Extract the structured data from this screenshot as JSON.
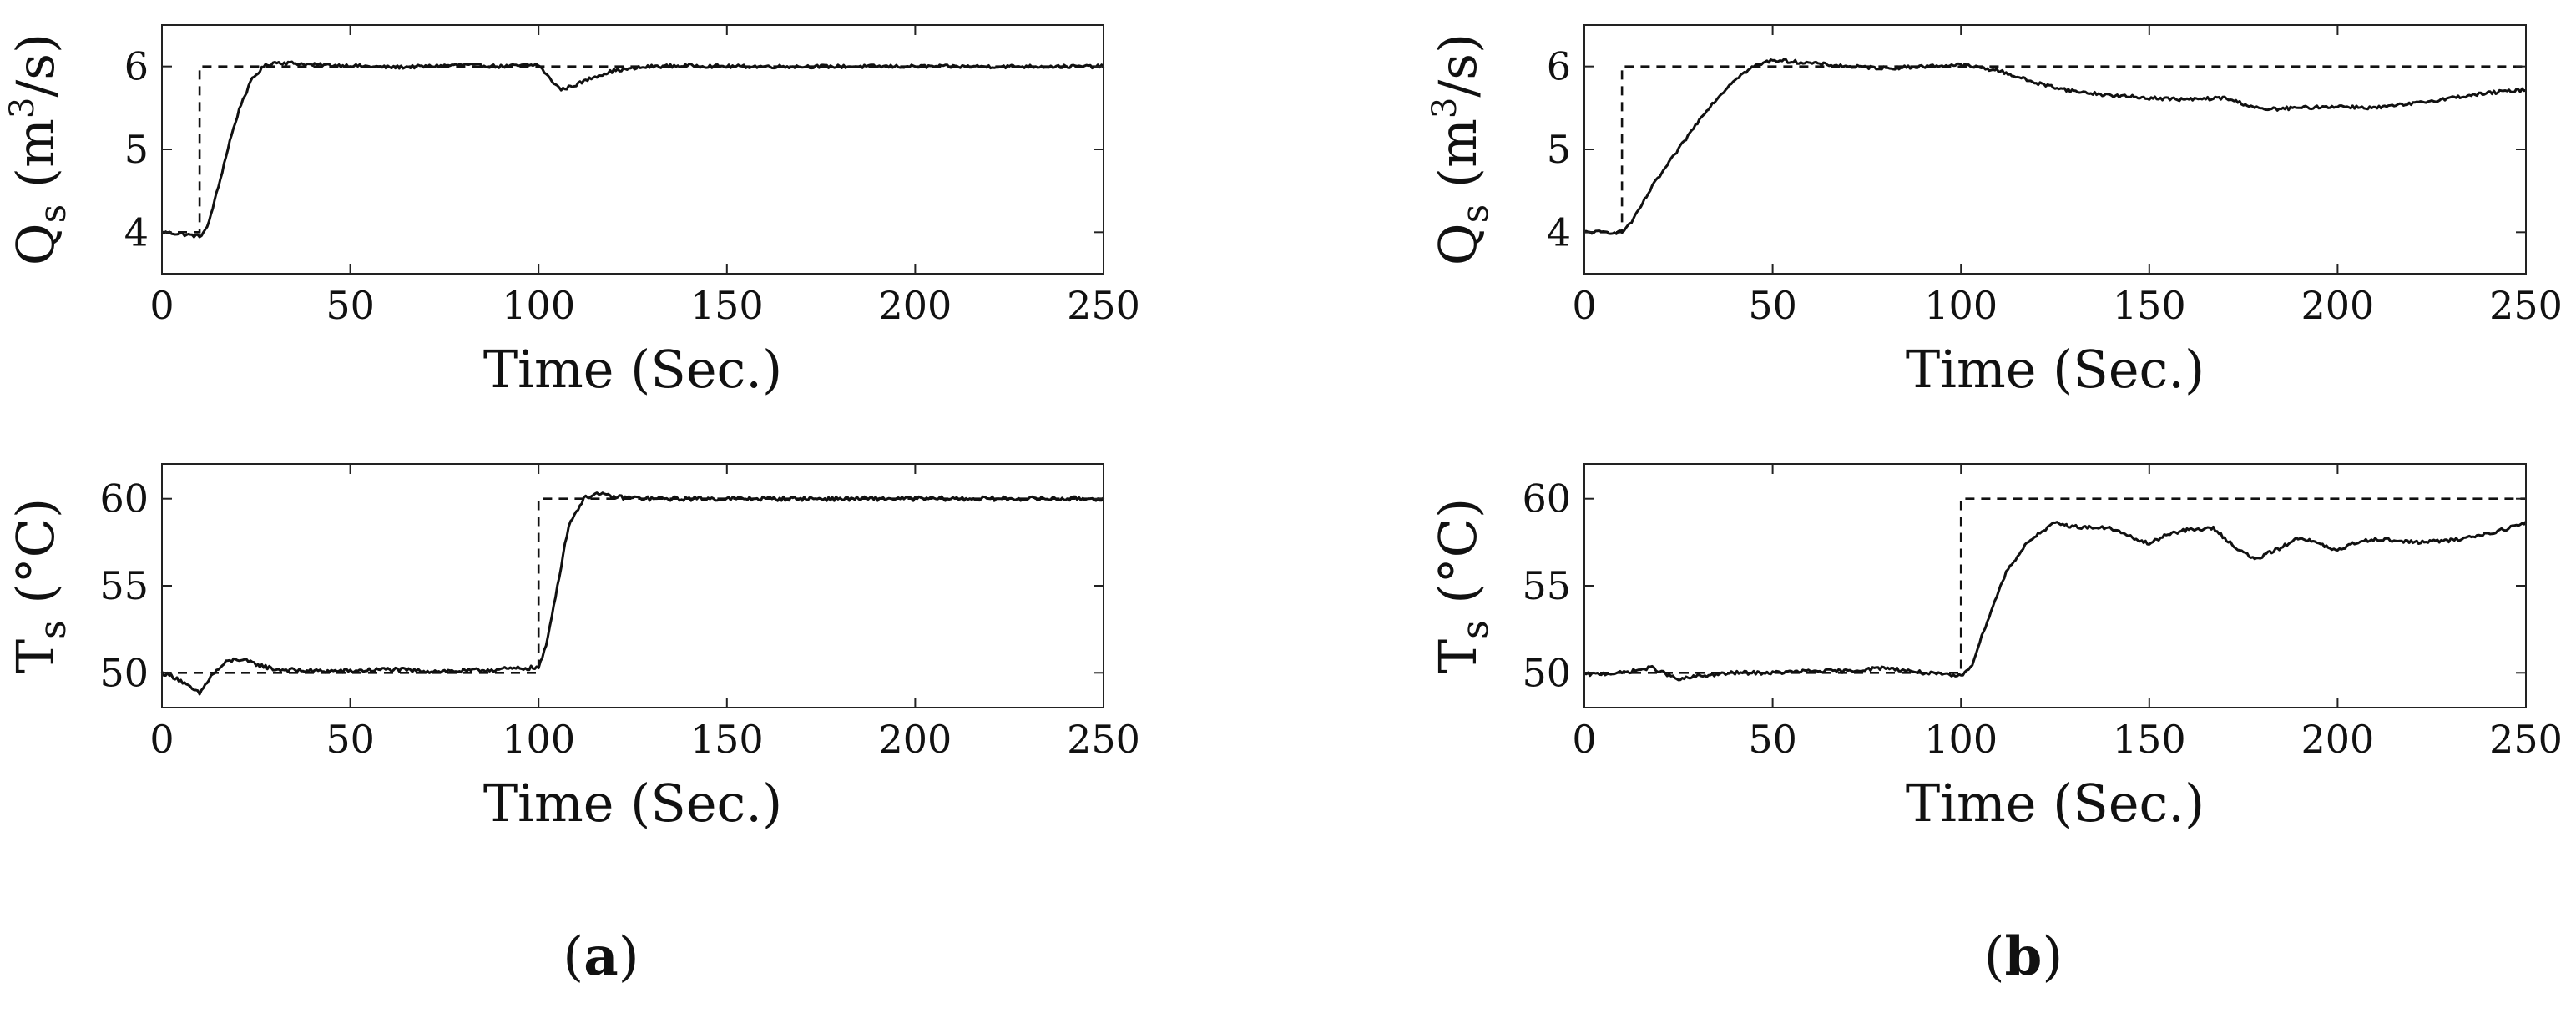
{
  "chart_data": [
    {
      "id": "a-top",
      "type": "line",
      "panel": "a",
      "ylabel_main": "Q",
      "ylabel_sub": "s",
      "ylabel_unit_pre": " (m",
      "ylabel_unit_sup": "3",
      "ylabel_unit_post": "/s)",
      "xlabel": "Time (Sec.)",
      "xlim": [
        0,
        250
      ],
      "ylim": [
        3.5,
        6.5
      ],
      "xticks": [
        0,
        50,
        100,
        150,
        200,
        250
      ],
      "yticks": [
        4,
        5,
        6
      ],
      "grid": false,
      "series": [
        {
          "name": "setpoint",
          "style": "dashed",
          "x": [
            0,
            10,
            10,
            250
          ],
          "y": [
            4,
            4,
            6,
            6
          ]
        },
        {
          "name": "measured",
          "style": "solid",
          "noise": 0.02,
          "x": [
            0,
            5,
            10,
            12,
            15,
            18,
            21,
            24,
            27,
            30,
            35,
            40,
            50,
            60,
            70,
            80,
            90,
            100,
            103,
            106,
            110,
            115,
            120,
            130,
            140,
            150,
            175,
            200,
            225,
            250
          ],
          "y": [
            4.0,
            3.98,
            3.95,
            4.05,
            4.55,
            5.1,
            5.55,
            5.85,
            6.0,
            6.05,
            6.04,
            6.02,
            6.01,
            5.99,
            6.0,
            6.02,
            6.0,
            6.02,
            5.85,
            5.72,
            5.78,
            5.88,
            5.95,
            6.0,
            6.01,
            6.0,
            6.0,
            6.0,
            6.0,
            6.0
          ]
        }
      ]
    },
    {
      "id": "a-bottom",
      "type": "line",
      "panel": "a",
      "ylabel_main": "T",
      "ylabel_sub": "s",
      "ylabel_unit_pre": " (°C)",
      "ylabel_unit_sup": "",
      "ylabel_unit_post": "",
      "xlabel": "Time (Sec.)",
      "xlim": [
        0,
        250
      ],
      "ylim": [
        48,
        62
      ],
      "xticks": [
        0,
        50,
        100,
        150,
        200,
        250
      ],
      "yticks": [
        50,
        55,
        60
      ],
      "grid": false,
      "series": [
        {
          "name": "setpoint",
          "style": "dashed",
          "x": [
            0,
            100,
            100,
            250
          ],
          "y": [
            50,
            50,
            60,
            60
          ]
        },
        {
          "name": "measured",
          "style": "solid",
          "noise": 0.12,
          "x": [
            0,
            4,
            7,
            10,
            13,
            17,
            20,
            25,
            30,
            40,
            50,
            60,
            70,
            80,
            90,
            100,
            102,
            105,
            108,
            112,
            115,
            120,
            130,
            150,
            175,
            200,
            225,
            250
          ],
          "y": [
            50.0,
            49.7,
            49.2,
            48.8,
            49.8,
            50.6,
            50.8,
            50.5,
            50.2,
            50.1,
            50.1,
            50.2,
            50.1,
            50.1,
            50.2,
            50.3,
            51.5,
            55.0,
            58.5,
            60.0,
            60.3,
            60.1,
            60.0,
            60.0,
            60.0,
            60.0,
            60.0,
            60.0
          ]
        }
      ]
    },
    {
      "id": "b-top",
      "type": "line",
      "panel": "b",
      "ylabel_main": "Q",
      "ylabel_sub": "s",
      "ylabel_unit_pre": " (m",
      "ylabel_unit_sup": "3",
      "ylabel_unit_post": "/s)",
      "xlabel": "Time (Sec.)",
      "xlim": [
        0,
        250
      ],
      "ylim": [
        3.5,
        6.5
      ],
      "xticks": [
        0,
        50,
        100,
        150,
        200,
        250
      ],
      "yticks": [
        4,
        5,
        6
      ],
      "grid": false,
      "series": [
        {
          "name": "setpoint",
          "style": "dashed",
          "x": [
            0,
            10,
            10,
            250
          ],
          "y": [
            4,
            4,
            6,
            6
          ]
        },
        {
          "name": "measured",
          "style": "solid",
          "noise": 0.02,
          "x": [
            0,
            5,
            10,
            13,
            18,
            25,
            32,
            40,
            45,
            50,
            55,
            60,
            70,
            80,
            90,
            100,
            110,
            120,
            130,
            140,
            150,
            160,
            170,
            180,
            190,
            200,
            210,
            220,
            230,
            240,
            250
          ],
          "y": [
            4.0,
            4.0,
            4.0,
            4.15,
            4.55,
            5.0,
            5.45,
            5.85,
            6.0,
            6.08,
            6.06,
            6.04,
            6.0,
            5.98,
            6.0,
            6.02,
            5.95,
            5.8,
            5.7,
            5.65,
            5.62,
            5.6,
            5.62,
            5.48,
            5.5,
            5.52,
            5.5,
            5.55,
            5.62,
            5.68,
            5.72
          ]
        }
      ]
    },
    {
      "id": "b-bottom",
      "type": "line",
      "panel": "b",
      "ylabel_main": "T",
      "ylabel_sub": "s",
      "ylabel_unit_pre": " (°C)",
      "ylabel_unit_sup": "",
      "ylabel_unit_post": "",
      "xlabel": "Time (Sec.)",
      "xlim": [
        0,
        250
      ],
      "ylim": [
        48,
        62
      ],
      "xticks": [
        0,
        50,
        100,
        150,
        200,
        250
      ],
      "yticks": [
        50,
        55,
        60
      ],
      "grid": false,
      "series": [
        {
          "name": "setpoint",
          "style": "dashed",
          "x": [
            0,
            100,
            100,
            250
          ],
          "y": [
            50,
            50,
            60,
            60
          ]
        },
        {
          "name": "measured",
          "style": "solid",
          "noise": 0.1,
          "x": [
            0,
            10,
            18,
            25,
            30,
            40,
            50,
            60,
            70,
            80,
            90,
            100,
            103,
            107,
            112,
            118,
            125,
            130,
            140,
            145,
            150,
            155,
            160,
            167,
            173,
            178,
            185,
            190,
            195,
            200,
            205,
            210,
            220,
            230,
            240,
            250
          ],
          "y": [
            49.9,
            50.0,
            50.3,
            49.6,
            49.8,
            50.0,
            50.0,
            50.1,
            50.1,
            50.3,
            50.0,
            49.8,
            50.5,
            53.0,
            55.8,
            57.6,
            58.6,
            58.4,
            58.3,
            57.8,
            57.4,
            58.0,
            58.2,
            58.3,
            57.2,
            56.5,
            57.2,
            57.8,
            57.4,
            57.0,
            57.5,
            57.7,
            57.5,
            57.6,
            58.0,
            58.6
          ]
        }
      ]
    }
  ],
  "panel_labels": {
    "a": "a",
    "b": "b"
  }
}
